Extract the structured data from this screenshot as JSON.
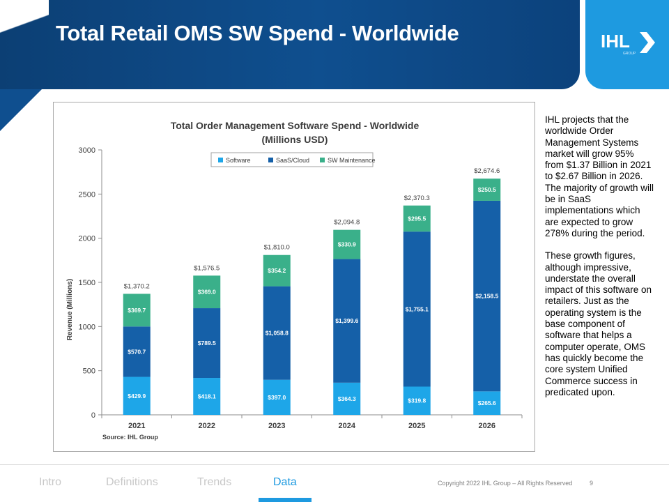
{
  "slide": {
    "title": "Total Retail OMS SW Spend - Worldwide"
  },
  "logo": {
    "text": "IHL",
    "sub": "GROUP"
  },
  "side_text": {
    "paragraph1": "IHL projects that the worldwide Order Management Systems market will grow 95% from $1.37 Billion in 2021 to $2.67 Billion in 2026. The majority of growth will be in SaaS implementations which are expected to grow 278% during the period.",
    "paragraph2": "These growth figures, although impressive, understate the overall impact of this software on retailers. Just as the operating system is the base component of software that helps a computer operate, OMS has quickly become the core system Unified Commerce success in predicated upon."
  },
  "footer": {
    "nav": [
      "Intro",
      "Definitions",
      "Trends",
      "Data"
    ],
    "active_index": 3,
    "copyright": "Copyright 2022 IHL Group – All Rights Reserved",
    "page_number": "9"
  },
  "chart_data": {
    "type": "bar",
    "stacked": true,
    "title_line1": "Total Order Management Software Spend - Worldwide",
    "title_line2": "(Millions USD)",
    "xlabel": "",
    "ylabel": "Revenue (Millions)",
    "ylim": [
      0,
      3000
    ],
    "yticks": [
      0,
      500,
      1000,
      1500,
      2000,
      2500,
      3000
    ],
    "grid": false,
    "legend_position": "top",
    "source": "Source: IHL Group",
    "categories": [
      "2021",
      "2022",
      "2023",
      "2024",
      "2025",
      "2026"
    ],
    "series": [
      {
        "name": "Software",
        "color": "#1ea6e8",
        "values": [
          429.9,
          418.1,
          397.0,
          364.3,
          319.8,
          265.6
        ],
        "labels": [
          "$429.9",
          "$418.1",
          "$397.0",
          "$364.3",
          "$319.8",
          "$265.6"
        ]
      },
      {
        "name": "SaaS/Cloud",
        "color": "#1560a8",
        "values": [
          570.7,
          789.5,
          1058.8,
          1399.6,
          1755.1,
          2158.5
        ],
        "labels": [
          "$570.7",
          "$789.5",
          "$1,058.8",
          "$1,399.6",
          "$1,755.1",
          "$2,158.5"
        ]
      },
      {
        "name": "SW Maintenance",
        "color": "#3ab08a",
        "values": [
          369.7,
          369.0,
          354.2,
          330.9,
          295.5,
          250.5
        ],
        "labels": [
          "$369.7",
          "$369.0",
          "$354.2",
          "$330.9",
          "$295.5",
          "$250.5"
        ]
      }
    ],
    "totals": [
      1370.2,
      1576.5,
      1810.0,
      2094.8,
      2370.3,
      2674.6
    ],
    "total_labels": [
      "$1,370.2",
      "$1,576.5",
      "$1,810.0",
      "$2,094.8",
      "$2,370.3",
      "$2,674.6"
    ]
  }
}
